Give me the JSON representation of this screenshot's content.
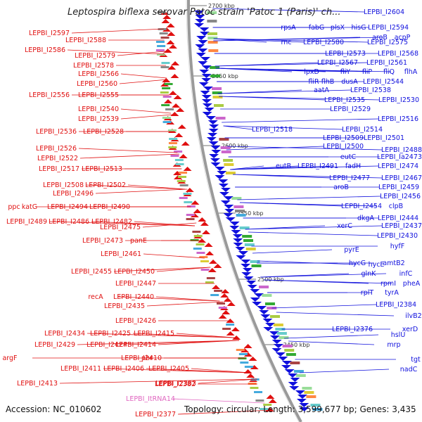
{
  "title": "Leptospira biflexa serovar Patoc strain 'Patoc 1 (Paris)' ch...",
  "footer": {
    "accession": "Accession: NC_010602",
    "topology": "Topology: circular; Length: 3,599,677 bp; Genes: 3,435"
  },
  "colors": {
    "left_genes": "#e01010",
    "right_genes": "#1010dd",
    "rna": "#e066c0",
    "axis": "#888888"
  },
  "kbp_ticks": [
    "2700 kbp",
    "2650 kbp",
    "2600 kbp",
    "2550 kbp",
    "2500 kbp",
    "2450 kbp"
  ],
  "left_labels": [
    {
      "text": "LEPBI_I2597",
      "type": "gene"
    },
    {
      "text": "LEPBI_I2588",
      "type": "gene"
    },
    {
      "text": "LEPBI_I2586",
      "type": "gene"
    },
    {
      "text": "LEPBI_I2579",
      "type": "gene"
    },
    {
      "text": "LEPBI_I2578",
      "type": "gene"
    },
    {
      "text": "LEPBI_I2566",
      "type": "gene"
    },
    {
      "text": "LEPBI_I2560",
      "type": "gene"
    },
    {
      "text": "LEPBI_I2556",
      "type": "gene"
    },
    {
      "text": "LEPBI_I2555",
      "type": "gene"
    },
    {
      "text": "LEPBI_I2540",
      "type": "gene"
    },
    {
      "text": "LEPBI_I2539",
      "type": "gene"
    },
    {
      "text": "LEPBI_I2536",
      "type": "gene"
    },
    {
      "text": "LEPBI_I2528",
      "type": "gene"
    },
    {
      "text": "LEPBI_I2526",
      "type": "gene"
    },
    {
      "text": "LEPBI_I2522",
      "type": "gene"
    },
    {
      "text": "LEPBI_I2517",
      "type": "gene"
    },
    {
      "text": "LEPBI_I2513",
      "type": "gene"
    },
    {
      "text": "LEPBI_I2508",
      "type": "gene"
    },
    {
      "text": "LEPBI_I2502",
      "type": "gene"
    },
    {
      "text": "LEPBI_I2496",
      "type": "gene"
    },
    {
      "text": "ppc",
      "type": "gene"
    },
    {
      "text": "katG",
      "type": "gene"
    },
    {
      "text": "LEPBI_I2494",
      "type": "gene"
    },
    {
      "text": "LEPBI_I2490",
      "type": "gene"
    },
    {
      "text": "LEPBI_I2489",
      "type": "gene"
    },
    {
      "text": "LEPBI_I2486",
      "type": "gene"
    },
    {
      "text": "LEPBI_I2482",
      "type": "gene"
    },
    {
      "text": "LEPBI_I2475",
      "type": "gene"
    },
    {
      "text": "LEPBI_I2473",
      "type": "gene"
    },
    {
      "text": "panE",
      "type": "gene"
    },
    {
      "text": "LEPBI_I2461",
      "type": "gene"
    },
    {
      "text": "LEPBI_I2455",
      "type": "gene"
    },
    {
      "text": "LEPBI_I2450",
      "type": "gene"
    },
    {
      "text": "LEPBI_I2447",
      "type": "gene"
    },
    {
      "text": "recA",
      "type": "gene"
    },
    {
      "text": "LEPBI_I2440",
      "type": "gene"
    },
    {
      "text": "LEPBI_I2435",
      "type": "gene"
    },
    {
      "text": "LEPBI_I2426",
      "type": "gene"
    },
    {
      "text": "LEPBI_I2434",
      "type": "gene"
    },
    {
      "text": "LEPBI_I2425",
      "type": "gene"
    },
    {
      "text": "LEPBI_I2415",
      "type": "gene"
    },
    {
      "text": "LEPBI_I2429",
      "type": "gene"
    },
    {
      "text": "LEPBI_I2424",
      "type": "gene"
    },
    {
      "text": "LEPBI_I2414",
      "type": "gene"
    },
    {
      "text": "argF",
      "type": "gene"
    },
    {
      "text": "LEPBI_I2410",
      "type": "gene"
    },
    {
      "text": "phr",
      "type": "gene"
    },
    {
      "text": "LEPBI_I2411",
      "type": "gene"
    },
    {
      "text": "LEPBI_I2406",
      "type": "gene"
    },
    {
      "text": "LEPBI_I2405",
      "type": "gene"
    },
    {
      "text": "LEPBI_I2413",
      "type": "gene"
    },
    {
      "text": "LEPBI_I2383",
      "type": "gene"
    },
    {
      "text": "LEPBI_I2382",
      "type": "gene"
    },
    {
      "text": "LEPBI_ItRNA14",
      "type": "rna"
    },
    {
      "text": "LEPBI_I2377",
      "type": "gene"
    }
  ],
  "right_labels": [
    {
      "text": "LEPBI_I2604"
    },
    {
      "text": "rpsA"
    },
    {
      "text": "fabG"
    },
    {
      "text": "plsX"
    },
    {
      "text": "hisG"
    },
    {
      "text": "LEPBI_I2594"
    },
    {
      "text": "aroB"
    },
    {
      "text": "acpP"
    },
    {
      "text": "rnc"
    },
    {
      "text": "LEPBI_I2580"
    },
    {
      "text": "LEPBI_I2575"
    },
    {
      "text": "LEPBI_I2573"
    },
    {
      "text": "LEPBI_I2568"
    },
    {
      "text": "LEPBI_I2567"
    },
    {
      "text": "LEPBI_I2561"
    },
    {
      "text": "lpxD"
    },
    {
      "text": "fliY"
    },
    {
      "text": "fliP"
    },
    {
      "text": "fliQ"
    },
    {
      "text": "flhA"
    },
    {
      "text": "fliR"
    },
    {
      "text": "flhB"
    },
    {
      "text": "dusA"
    },
    {
      "text": "LEPBI_I2544"
    },
    {
      "text": "aatA"
    },
    {
      "text": "LEPBI_I2538"
    },
    {
      "text": "LEPBI_I2535"
    },
    {
      "text": "LEPBI_I2530"
    },
    {
      "text": "LEPBI_I2529"
    },
    {
      "text": "LEPBI_I2516"
    },
    {
      "text": "LEPBI_I2518"
    },
    {
      "text": "LEPBI_I2514"
    },
    {
      "text": "LEPBI_I2509"
    },
    {
      "text": "LEPBI_I2501"
    },
    {
      "text": "LEPBI_I2500"
    },
    {
      "text": "LEPBI_I2488"
    },
    {
      "text": "eutC"
    },
    {
      "text": "LEPBI_Ia2473"
    },
    {
      "text": "eutB"
    },
    {
      "text": "LEPBI_I2491"
    },
    {
      "text": "fadH"
    },
    {
      "text": "LEPBI_I2474"
    },
    {
      "text": "LEPBI_I2477"
    },
    {
      "text": "LEPBI_I2467"
    },
    {
      "text": "aroB"
    },
    {
      "text": "LEPBI_I2459"
    },
    {
      "text": "LEPBI_I2456"
    },
    {
      "text": "LEPBI_I2454"
    },
    {
      "text": "clpB"
    },
    {
      "text": "dkgA"
    },
    {
      "text": "LEPBI_I2444"
    },
    {
      "text": "xerC"
    },
    {
      "text": "LEPBI_I2437"
    },
    {
      "text": "LEPBI_I2430"
    },
    {
      "text": "hyfF"
    },
    {
      "text": "pyrE"
    },
    {
      "text": "hycE"
    },
    {
      "text": "hycG"
    },
    {
      "text": "amtB2"
    },
    {
      "text": "glnK"
    },
    {
      "text": "infC"
    },
    {
      "text": "rpmI"
    },
    {
      "text": "pheA"
    },
    {
      "text": "rplT"
    },
    {
      "text": "tyrA"
    },
    {
      "text": "LEPBI_I2384"
    },
    {
      "text": "ilvB2"
    },
    {
      "text": "LEPBI_I2376"
    },
    {
      "text": "xerD"
    },
    {
      "text": "hslU"
    },
    {
      "text": "mrp"
    },
    {
      "text": "tgt"
    },
    {
      "text": "nadC"
    }
  ]
}
